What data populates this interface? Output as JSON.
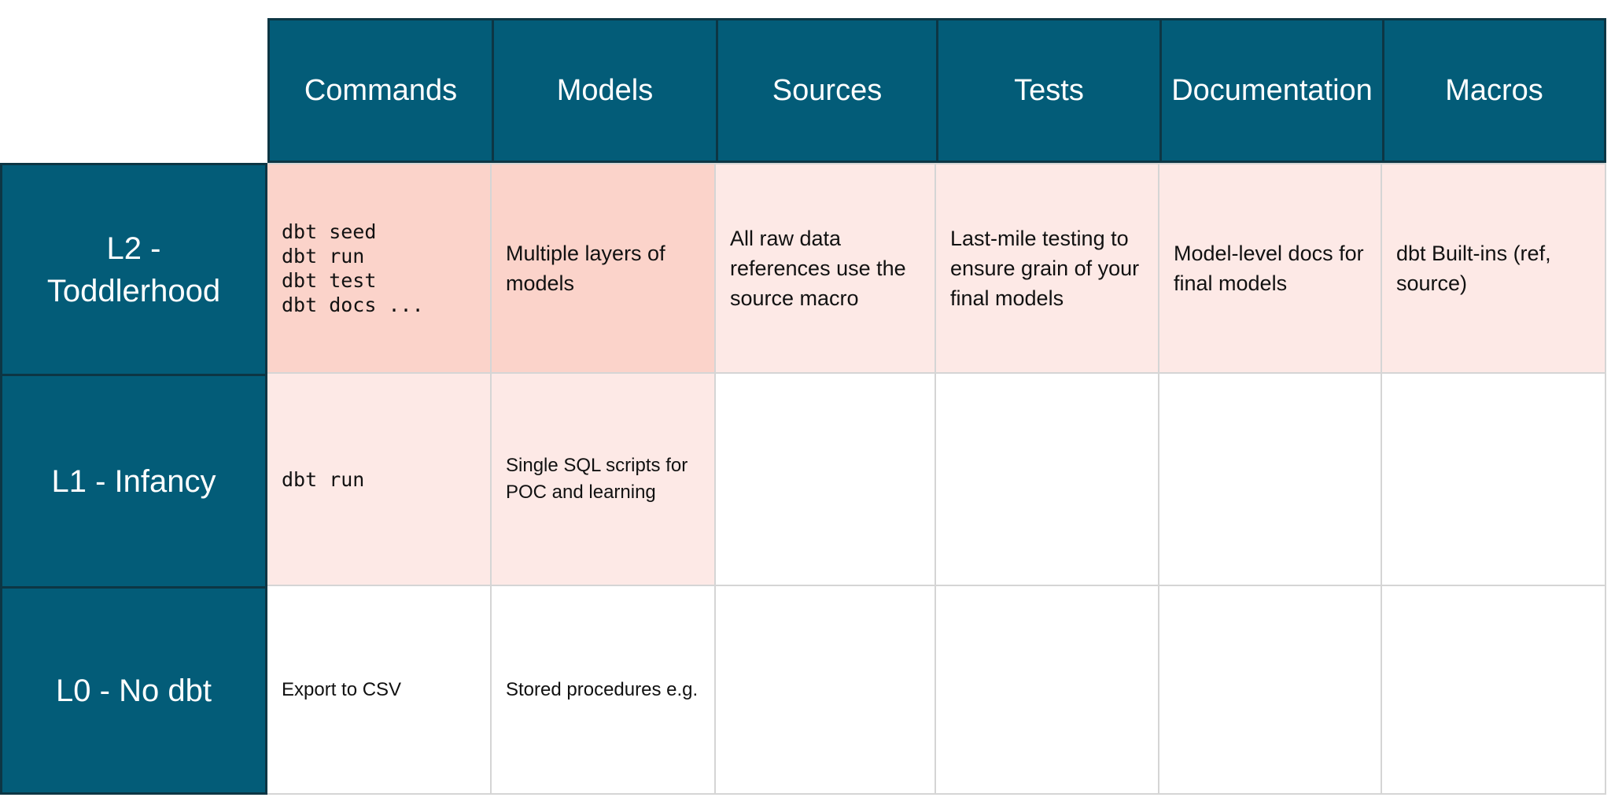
{
  "colors": {
    "header_teal": "#035C78",
    "dark_border": "#0D3644",
    "strong_pink": "#FBD3CA",
    "light_pink": "#FDE9E6",
    "grid_line": "#D5D5D5",
    "header_text": "#FFFFFF",
    "body_text": "#111111"
  },
  "matrix": {
    "columns": [
      "Commands",
      "Models",
      "Sources",
      "Tests",
      "Documentation",
      "Macros"
    ],
    "rows": [
      {
        "label": "L2 -\nToddlerhood",
        "cells": [
          {
            "text": "dbt seed\ndbt run\ndbt test\ndbt docs ...",
            "tone": "strong",
            "format": "code"
          },
          {
            "text": "Multiple layers of models",
            "tone": "strong",
            "format": "text"
          },
          {
            "text": "All raw data references use the source macro",
            "tone": "light",
            "format": "text"
          },
          {
            "text": "Last-mile testing to ensure grain of your final models",
            "tone": "light",
            "format": "text"
          },
          {
            "text": "Model-level docs for final models",
            "tone": "light",
            "format": "text"
          },
          {
            "text": "dbt Built-ins (ref, source)",
            "tone": "light",
            "format": "text"
          }
        ]
      },
      {
        "label": "L1 - Infancy",
        "cells": [
          {
            "text": "dbt run",
            "tone": "light",
            "format": "code"
          },
          {
            "text": "Single SQL scripts for POC and learning",
            "tone": "light",
            "format": "text"
          },
          {
            "text": "",
            "tone": "none",
            "format": "text"
          },
          {
            "text": "",
            "tone": "none",
            "format": "text"
          },
          {
            "text": "",
            "tone": "none",
            "format": "text"
          },
          {
            "text": "",
            "tone": "none",
            "format": "text"
          }
        ]
      },
      {
        "label": "L0 - No dbt",
        "cells": [
          {
            "text": "Export to CSV",
            "tone": "none",
            "format": "text"
          },
          {
            "text": "Stored procedures e.g.",
            "tone": "none",
            "format": "text"
          },
          {
            "text": "",
            "tone": "none",
            "format": "text"
          },
          {
            "text": "",
            "tone": "none",
            "format": "text"
          },
          {
            "text": "",
            "tone": "none",
            "format": "text"
          },
          {
            "text": "",
            "tone": "none",
            "format": "text"
          }
        ]
      }
    ]
  }
}
